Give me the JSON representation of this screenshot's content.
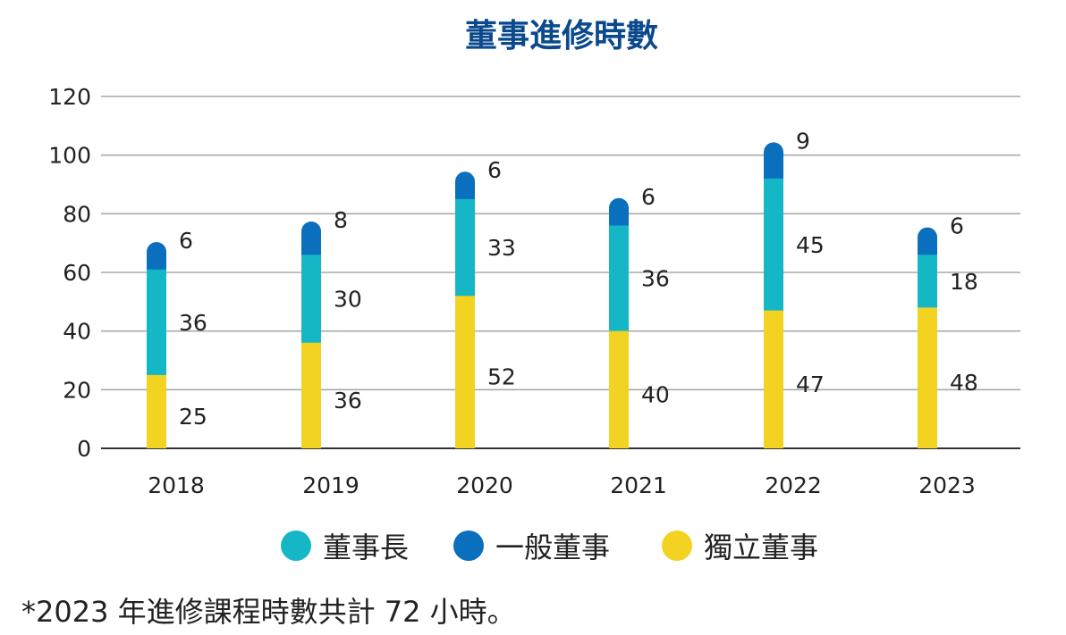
{
  "chart_data": {
    "type": "bar",
    "stacked": true,
    "title": "董事進修時數",
    "categories": [
      "2018",
      "2019",
      "2020",
      "2021",
      "2022",
      "2023"
    ],
    "series": [
      {
        "name": "獨立董事",
        "color": "#f2d321",
        "values": [
          25,
          36,
          52,
          40,
          47,
          48
        ]
      },
      {
        "name": "董事長",
        "color": "#15b7c7",
        "values": [
          36,
          30,
          33,
          36,
          45,
          18
        ]
      },
      {
        "name": "一般董事",
        "color": "#0a6fbd",
        "values": [
          6,
          8,
          6,
          6,
          9,
          6
        ]
      }
    ],
    "legend_order": [
      "董事長",
      "一般董事",
      "獨立董事"
    ],
    "ylim": [
      0,
      120
    ],
    "yticks": [
      0,
      20,
      40,
      60,
      80,
      100,
      120
    ],
    "grid": true,
    "legend_position": "bottom"
  },
  "footnote": "*2023 年進修課程時數共計 72 小時。"
}
